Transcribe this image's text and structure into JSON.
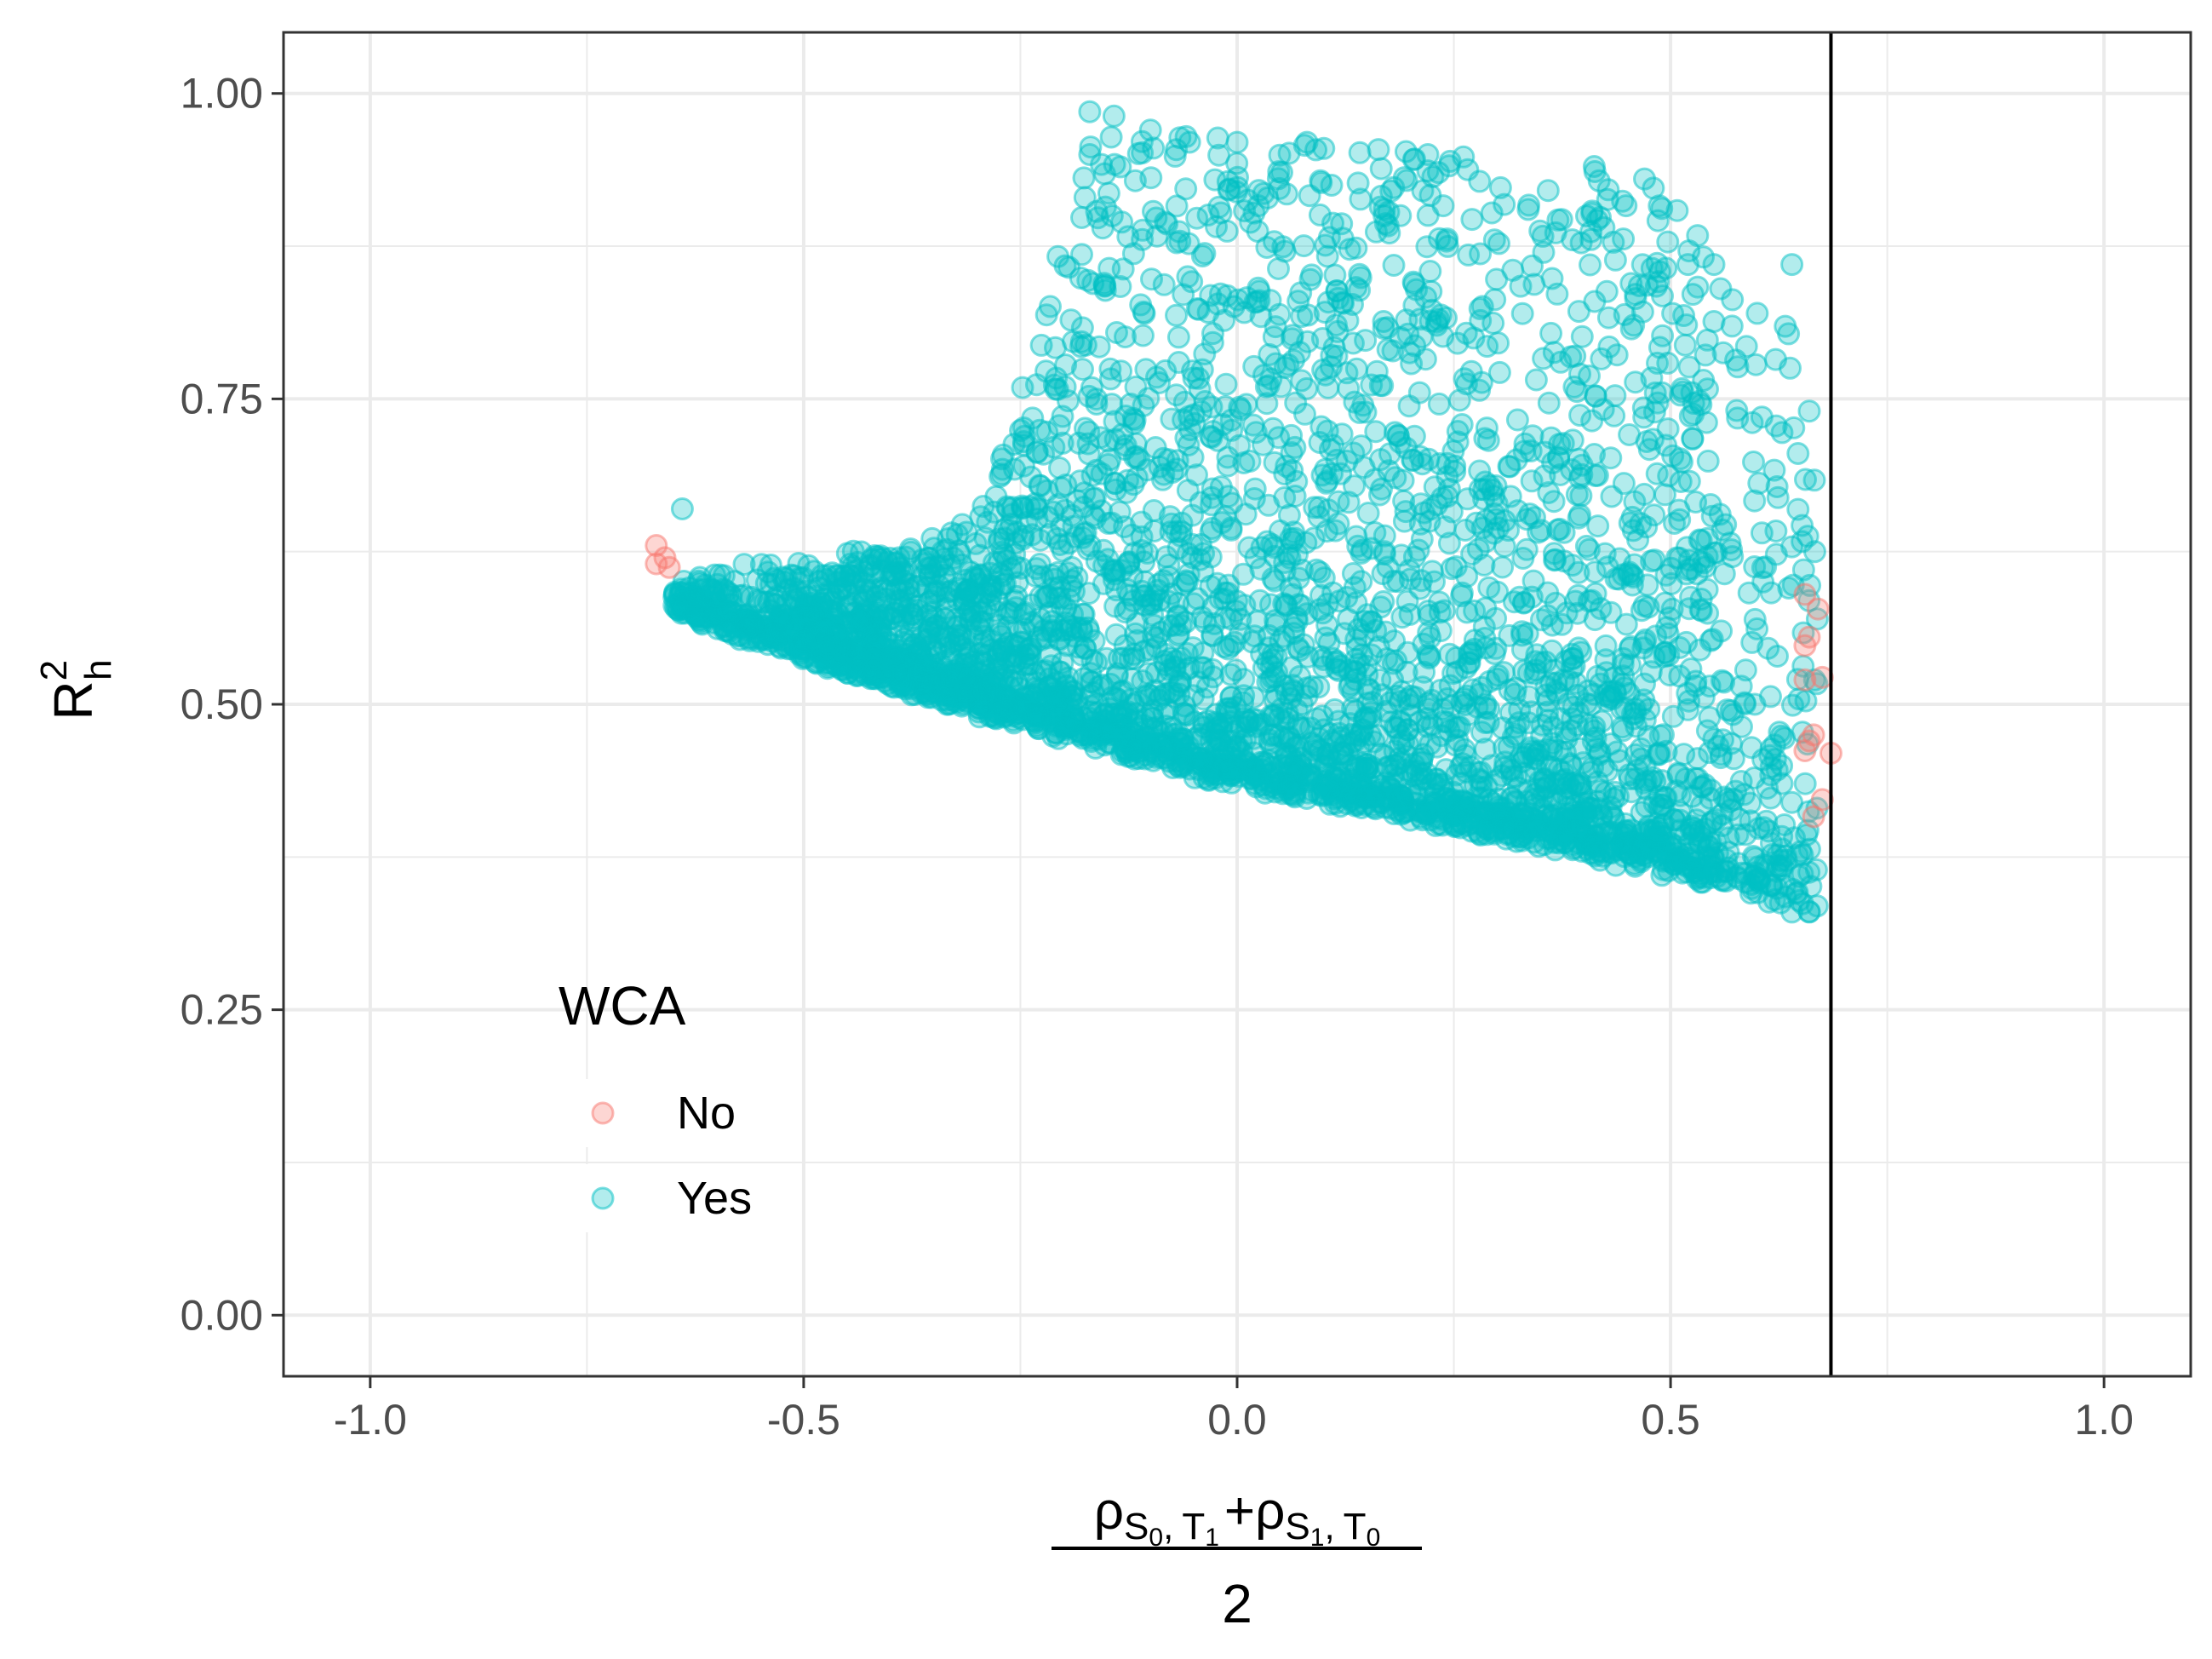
{
  "chart_data": {
    "type": "scatter",
    "xlabel_parts": {
      "rho": "ρ",
      "S0": "S",
      "S0_sub": "0",
      "T1": "T",
      "T1_sub": "1",
      "plus": "+",
      "S1": "S",
      "S1_sub": "1",
      "T0": "T",
      "T0_sub": "0",
      "comma": ",",
      "denominator": "2"
    },
    "ylabel": {
      "base": "R",
      "sup": "2",
      "sub": "h"
    },
    "xlim": [
      -1.1,
      1.1
    ],
    "ylim": [
      -0.05,
      1.05
    ],
    "x_ticks": [
      -1.0,
      -0.5,
      0.0,
      0.5,
      1.0
    ],
    "x_tick_labels": [
      "-1.0",
      "-0.5",
      "0.0",
      "0.5",
      "1.0"
    ],
    "y_ticks": [
      0.0,
      0.25,
      0.5,
      0.75,
      1.0
    ],
    "y_tick_labels": [
      "0.00",
      "0.25",
      "0.50",
      "0.75",
      "1.00"
    ],
    "vline_x": 0.685,
    "grid": true,
    "legend": {
      "title": "WCA",
      "position": "inside-bottom-left",
      "entries": [
        {
          "label": "No",
          "color": "#F8766D"
        },
        {
          "label": "Yes",
          "color": "#00BFC4"
        }
      ]
    },
    "series": [
      {
        "name": "Yes",
        "color": "#00BFC4",
        "generated_envelope": {
          "count": 4200,
          "band_bottom": [
            [
              -0.65,
              0.58
            ],
            [
              -0.3,
              0.5
            ],
            [
              0.0,
              0.44
            ],
            [
              0.3,
              0.4
            ],
            [
              0.55,
              0.36
            ],
            [
              0.67,
              0.33
            ]
          ],
          "top_edge": [
            [
              -0.65,
              0.6
            ],
            [
              -0.3,
              0.64
            ],
            [
              -0.22,
              0.82
            ],
            [
              -0.17,
              0.98
            ],
            [
              0.3,
              0.94
            ],
            [
              0.5,
              0.93
            ],
            [
              0.55,
              0.86
            ],
            [
              0.65,
              0.8
            ],
            [
              0.67,
              0.74
            ]
          ]
        },
        "points": [
          {
            "x": -0.64,
            "y": 0.66
          },
          {
            "x": -0.17,
            "y": 0.985
          },
          {
            "x": -0.17,
            "y": 0.95
          },
          {
            "x": -0.1,
            "y": 0.97
          },
          {
            "x": 0.0,
            "y": 0.96
          },
          {
            "x": 0.1,
            "y": 0.955
          },
          {
            "x": 0.22,
            "y": 0.95
          },
          {
            "x": 0.47,
            "y": 0.93
          },
          {
            "x": 0.64,
            "y": 0.86
          },
          {
            "x": 0.55,
            "y": 0.86
          },
          {
            "x": 0.6,
            "y": 0.82
          },
          {
            "x": 0.66,
            "y": 0.74
          },
          {
            "x": 0.64,
            "y": 0.33
          },
          {
            "x": 0.66,
            "y": 0.33
          },
          {
            "x": 0.62,
            "y": 0.34
          }
        ]
      },
      {
        "name": "No",
        "color": "#F8766D",
        "points": [
          {
            "x": -0.67,
            "y": 0.63
          },
          {
            "x": -0.66,
            "y": 0.62
          },
          {
            "x": -0.67,
            "y": 0.615
          },
          {
            "x": -0.655,
            "y": 0.612
          },
          {
            "x": 0.655,
            "y": 0.59
          },
          {
            "x": 0.67,
            "y": 0.578
          },
          {
            "x": 0.66,
            "y": 0.555
          },
          {
            "x": 0.655,
            "y": 0.548
          },
          {
            "x": 0.675,
            "y": 0.522
          },
          {
            "x": 0.655,
            "y": 0.52
          },
          {
            "x": 0.665,
            "y": 0.475
          },
          {
            "x": 0.66,
            "y": 0.47
          },
          {
            "x": 0.655,
            "y": 0.462
          },
          {
            "x": 0.685,
            "y": 0.46
          },
          {
            "x": 0.675,
            "y": 0.422
          },
          {
            "x": 0.665,
            "y": 0.408
          }
        ]
      }
    ]
  }
}
